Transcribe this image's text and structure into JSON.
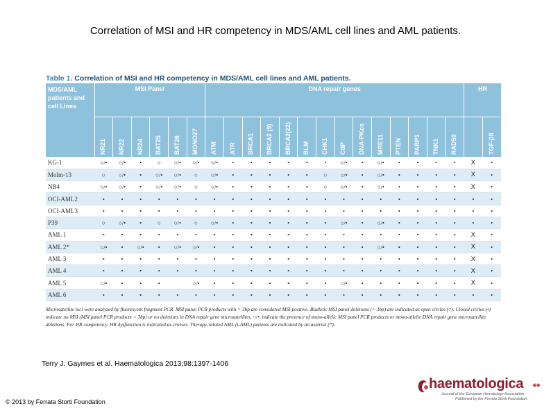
{
  "slide": {
    "title": "Correlation of MSI and HR competency in MDS/AML cell lines and AML patients.",
    "citation": "Terry J. Gaymes et al. Haematologica 2013;98:1397-1406",
    "copyright": "© 2013 by Ferrata Storti Foundation"
  },
  "table": {
    "caption_number": "Table 1.",
    "caption_title": "Correlation of MSI and HR competency in MDS/AML cell lines and AML patients.",
    "group_headers": {
      "first": "MDS/AML patients and cell Lines",
      "msi": "MSI Panel",
      "dna": "DNA repair genes",
      "hr": "HR"
    },
    "columns": [
      "NR21",
      "NR22",
      "NR24",
      "BAT25",
      "BAT26",
      "MONO27",
      "ATM",
      "ATR",
      "BRCA1",
      "BRCA2 (9)",
      "BRCA2(22)",
      "BLM",
      "CHK1",
      "CtIP",
      "DNA-PKcs",
      "MRE11",
      "PTEN",
      "PARP1",
      "TNK1",
      "RAD50",
      "",
      "TGF-βII"
    ],
    "rows": [
      {
        "name": "KG-1",
        "cells": [
          "○/•",
          "○/•",
          "•",
          "○",
          "○/•",
          "○/•",
          "○/•",
          "•",
          "•",
          "•",
          "•",
          "•",
          "•",
          "○/•",
          "•",
          "○/•",
          "•",
          "•",
          "•",
          "•",
          "X",
          "•"
        ]
      },
      {
        "name": "Molm-13",
        "cells": [
          "○",
          "○/•",
          "•",
          "○/•",
          "○/•",
          "○",
          "○/•",
          "•",
          "•",
          "•",
          "•",
          "•",
          "○",
          "○/•",
          "•",
          "○/•",
          "•",
          "•",
          "•",
          "•",
          "X",
          "•"
        ]
      },
      {
        "name": "NB4",
        "cells": [
          "○/•",
          "○/•",
          "•",
          "○/•",
          "○/•",
          "○",
          "○/•",
          "•",
          "•",
          "•",
          "•",
          "•",
          "○",
          "○/•",
          "•",
          "○/•",
          "•",
          "•",
          "•",
          "•",
          "X",
          "•"
        ]
      },
      {
        "name": "OCI-AML2",
        "cells": [
          "•",
          "•",
          "•",
          "•",
          "•",
          "•",
          "•",
          "•",
          "•",
          "•",
          "•",
          "•",
          "•",
          "•",
          "•",
          "•",
          "•",
          "•",
          "•",
          "•",
          "•",
          "•"
        ]
      },
      {
        "name": "OCI-AML3",
        "cells": [
          "•",
          "•",
          "•",
          "•",
          "•",
          "•",
          "•",
          "•",
          "•",
          "•",
          "•",
          "•",
          "•",
          "•",
          "•",
          "•",
          "•",
          "•",
          "•",
          "•",
          "•",
          "•"
        ]
      },
      {
        "name": "P39",
        "cells": [
          "○",
          "○/•",
          "•",
          "○",
          "○/•",
          "○",
          "○/•",
          "•",
          "•",
          "•",
          "•",
          "•",
          "•",
          "○/•",
          "•",
          "○/•",
          "•",
          "•",
          "•",
          "•",
          "•",
          "•"
        ]
      },
      {
        "name": "AML 1",
        "cells": [
          "•",
          "•",
          "•",
          "•",
          "•",
          "•",
          "•",
          "•",
          "•",
          "•",
          "•",
          "•",
          "•",
          "•",
          "•",
          "•",
          "•",
          "•",
          "•",
          "•",
          "X",
          "•"
        ]
      },
      {
        "name": "AML 2*",
        "cells": [
          "○/•",
          "•",
          "○/•",
          "•",
          "○/•",
          "○/•",
          "•",
          "•",
          "•",
          "•",
          "•",
          "•",
          "•",
          "•",
          "•",
          "○/•",
          "•",
          "•",
          "•",
          "•",
          "X",
          "•"
        ]
      },
      {
        "name": "AML 3",
        "cells": [
          "•",
          "•",
          "•",
          "•",
          "•",
          "•",
          "•",
          "•",
          "•",
          "•",
          "•",
          "•",
          "•",
          "•",
          "•",
          "•",
          "•",
          "•",
          "•",
          "•",
          "X",
          "•"
        ]
      },
      {
        "name": "AML 4",
        "cells": [
          "•",
          "•",
          "•",
          "•",
          "•",
          "•",
          "•",
          "•",
          "•",
          "•",
          "•",
          "•",
          "•",
          "•",
          "•",
          "•",
          "•",
          "•",
          "•",
          "•",
          "X",
          "•"
        ]
      },
      {
        "name": "AML 5",
        "cells": [
          "○/•",
          "•",
          "•",
          "•",
          "",
          "○/•",
          "•",
          "•",
          "•",
          "•",
          "•",
          "•",
          "•",
          "○/•",
          "•",
          "•",
          "•",
          "•",
          "•",
          "•",
          "X",
          "•"
        ]
      },
      {
        "name": "AML 6",
        "cells": [
          "•",
          "•",
          "•",
          "•",
          "•",
          "•",
          "•",
          "•",
          "•",
          "•",
          "•",
          "•",
          "•",
          "•",
          "•",
          "•",
          "•",
          "•",
          "•",
          "•",
          "•",
          "•"
        ]
      }
    ],
    "footnote": "Microsatellite loci were analyzed by fluorescent fragment PCR. MSI panel PCR products with > 3bp are considered MSI positive. Biallelic MSI panel deletions (> 3bp) are indicated as open circles (○). Closed circles (•) indicate no MSI (MSI panel PCR products < 3bp) or no deletions in DNA repair gene microsatellites. ○/•, indicate the presence of mono-allelic MSI panel PCR products or mono-allelic DNA repair gene microsatellite deletions. For HR competency, HR dysfunction is indicated as crosses. Therapy-related AML (t-AML) patients are indicated by an asterisk (*)."
  },
  "logo": {
    "name": "haematologica",
    "subtitle1": "Journal of the European Hematology Association",
    "subtitle2": "Published by the Ferrata Storti Foundation"
  },
  "colors": {
    "header_bg": "#8ec1dc",
    "row_alt": "#deedf5",
    "caption": "#3a7fae",
    "logo": "#8a1e2e"
  }
}
